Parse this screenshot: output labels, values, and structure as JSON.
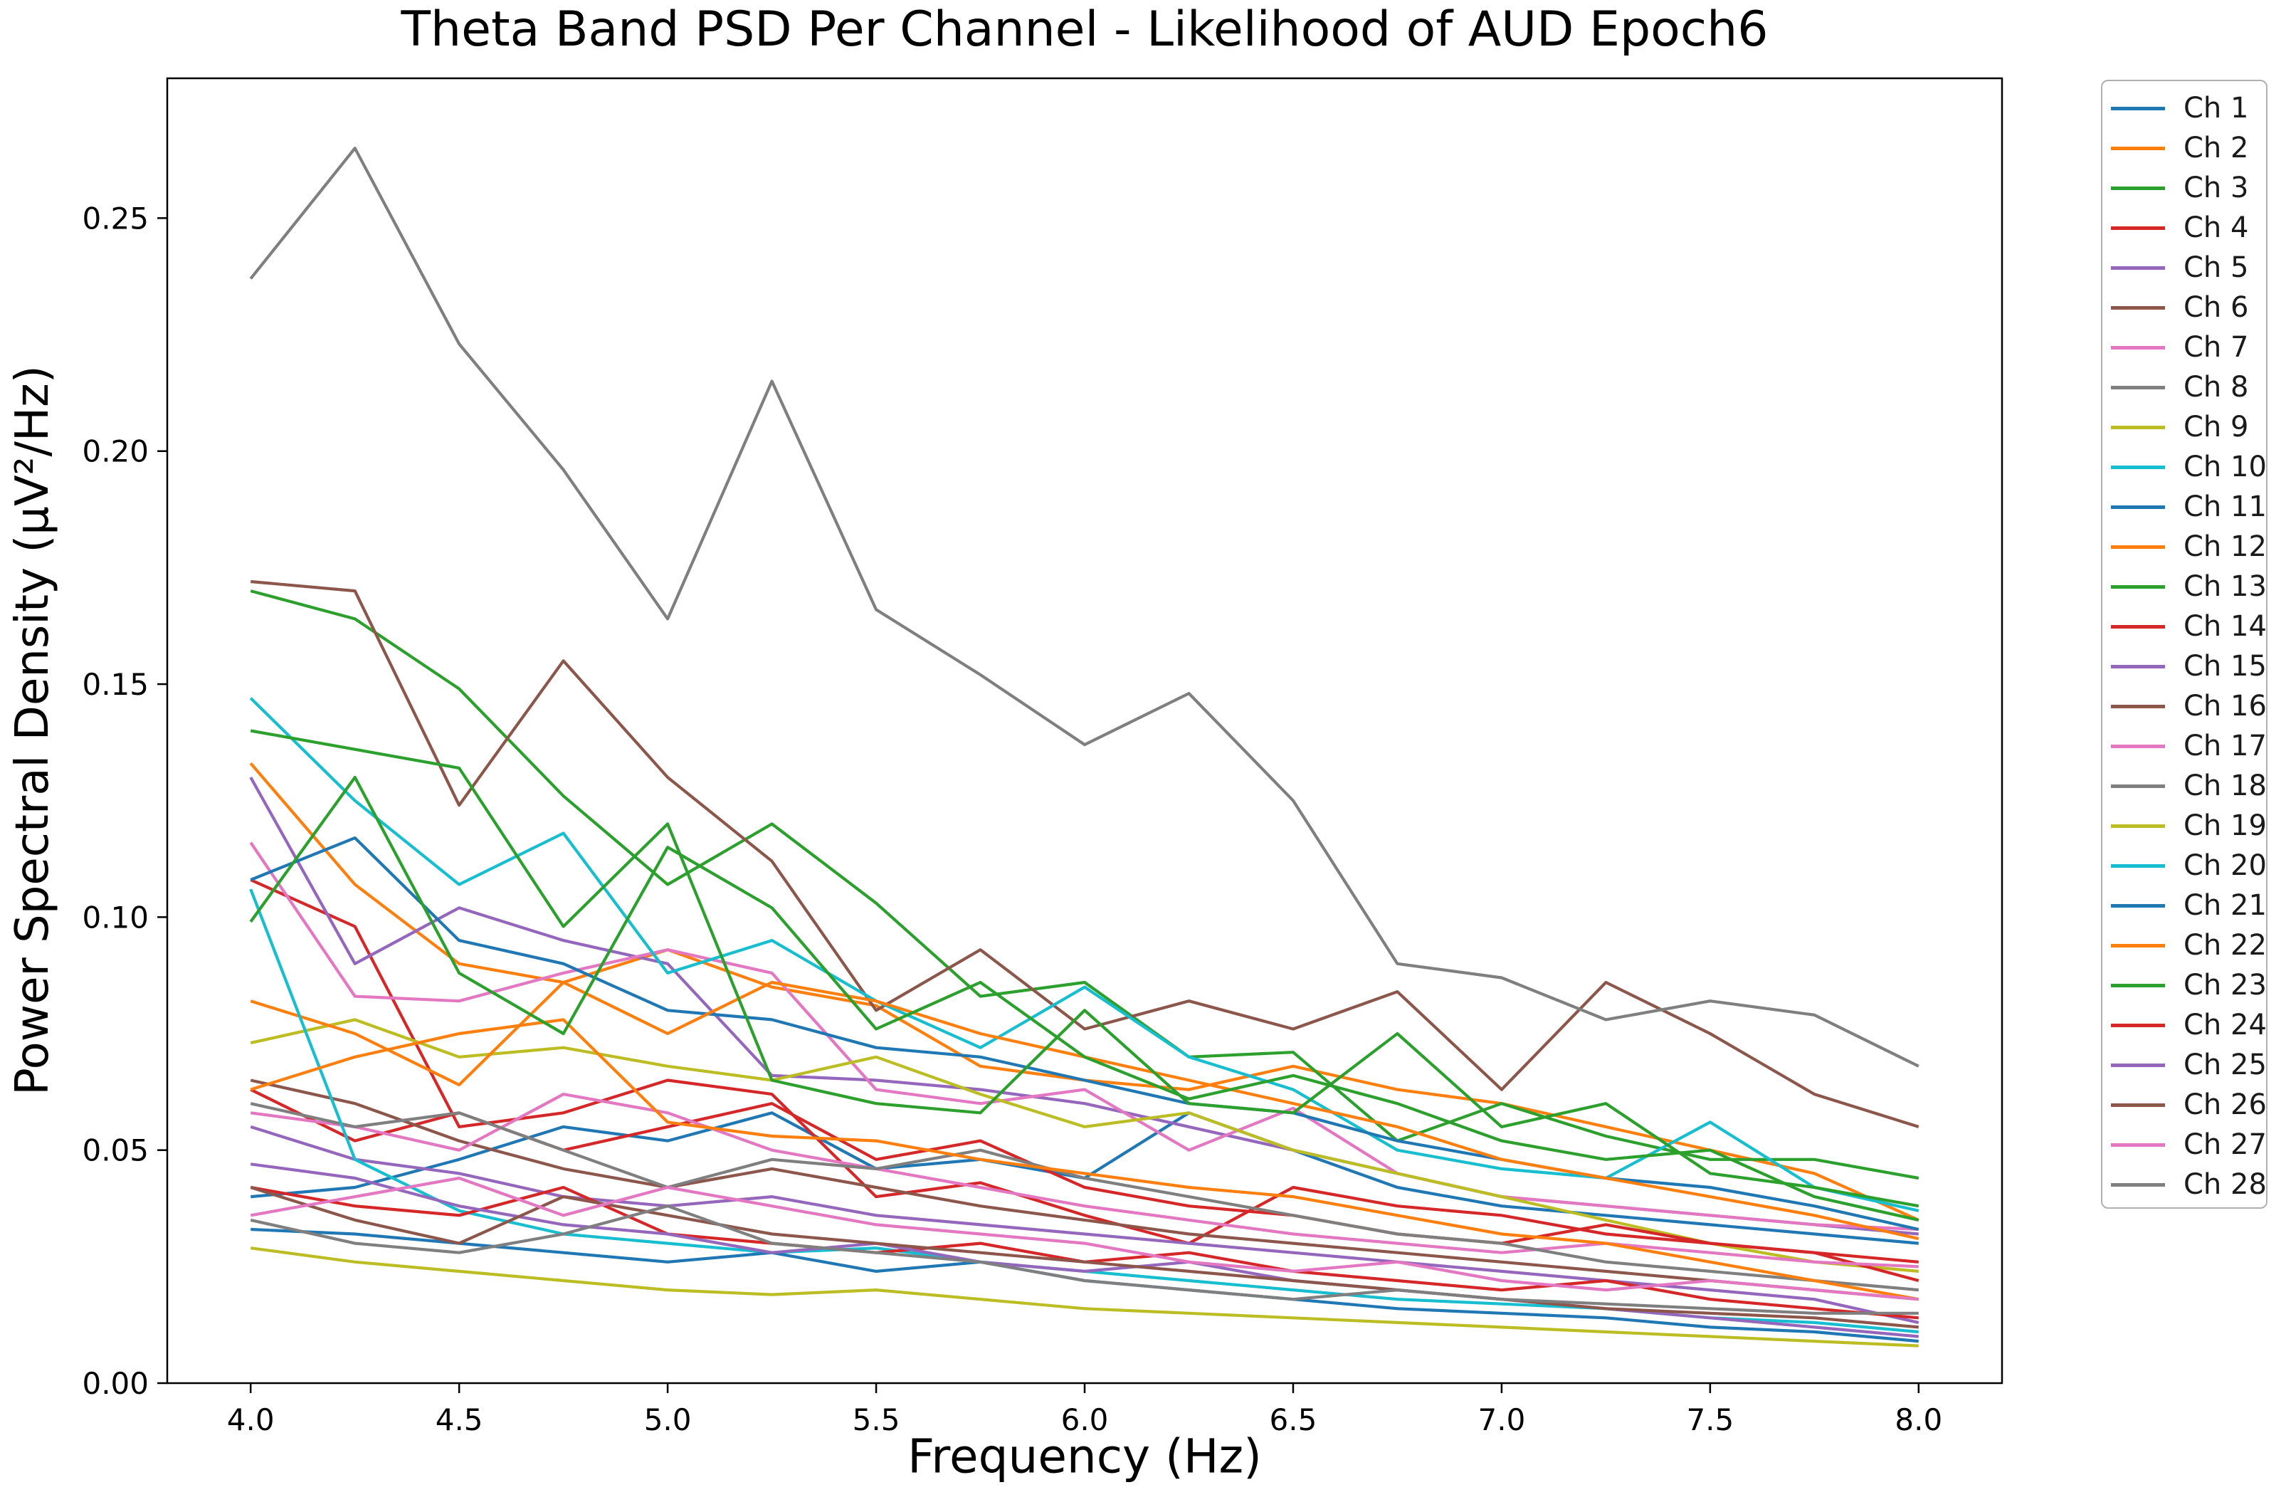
{
  "chart_data": {
    "type": "line",
    "title": "Theta Band PSD Per Channel - Likelihood of AUD Epoch6",
    "xlabel": "Frequency (Hz)",
    "ylabel": "Power Spectral Density (μV²/Hz)",
    "xlim": [
      3.8,
      8.2
    ],
    "ylim": [
      0.0,
      0.28
    ],
    "grid": false,
    "legend_position": "outside-right-top",
    "legend_border_color": "#b0b0b0",
    "axes_color": "#000000",
    "background_color": "#ffffff",
    "xticks": {
      "values": [
        4.0,
        4.5,
        5.0,
        5.5,
        6.0,
        6.5,
        7.0,
        7.5,
        8.0
      ],
      "labels": [
        "4.0",
        "4.5",
        "5.0",
        "5.5",
        "6.0",
        "6.5",
        "7.0",
        "7.5",
        "8.0"
      ]
    },
    "yticks": {
      "values": [
        0.0,
        0.05,
        0.1,
        0.15,
        0.2,
        0.25
      ],
      "labels": [
        "0.00",
        "0.05",
        "0.10",
        "0.15",
        "0.20",
        "0.25"
      ]
    },
    "x": [
      4.0,
      4.25,
      4.5,
      4.75,
      5.0,
      5.25,
      5.5,
      5.75,
      6.0,
      6.25,
      6.5,
      6.75,
      7.0,
      7.25,
      7.5,
      7.75,
      8.0
    ],
    "series": [
      {
        "name": "Ch 1",
        "color": "#1f77b4",
        "values": [
          0.04,
          0.042,
          0.048,
          0.055,
          0.052,
          0.058,
          0.046,
          0.048,
          0.044,
          0.058,
          0.05,
          0.042,
          0.038,
          0.036,
          0.034,
          0.032,
          0.03
        ]
      },
      {
        "name": "Ch 2",
        "color": "#ff7f0e",
        "values": [
          0.133,
          0.107,
          0.09,
          0.086,
          0.093,
          0.085,
          0.081,
          0.068,
          0.065,
          0.063,
          0.068,
          0.063,
          0.06,
          0.055,
          0.05,
          0.045,
          0.035
        ]
      },
      {
        "name": "Ch 3",
        "color": "#2ca02c",
        "values": [
          0.17,
          0.164,
          0.149,
          0.126,
          0.107,
          0.12,
          0.103,
          0.083,
          0.086,
          0.07,
          0.071,
          0.052,
          0.06,
          0.053,
          0.048,
          0.048,
          0.044
        ]
      },
      {
        "name": "Ch 4",
        "color": "#d62728",
        "values": [
          0.108,
          0.098,
          0.055,
          0.058,
          0.065,
          0.062,
          0.04,
          0.043,
          0.036,
          0.03,
          0.042,
          0.038,
          0.036,
          0.032,
          0.03,
          0.028,
          0.026
        ]
      },
      {
        "name": "Ch 5",
        "color": "#9467bd",
        "values": [
          0.13,
          0.09,
          0.102,
          0.095,
          0.09,
          0.066,
          0.065,
          0.063,
          0.06,
          0.055,
          0.05,
          0.045,
          0.04,
          0.038,
          0.036,
          0.034,
          0.032
        ]
      },
      {
        "name": "Ch 6",
        "color": "#8c564b",
        "values": [
          0.172,
          0.17,
          0.124,
          0.155,
          0.13,
          0.112,
          0.08,
          0.093,
          0.076,
          0.082,
          0.076,
          0.084,
          0.063,
          0.086,
          0.075,
          0.062,
          0.055
        ]
      },
      {
        "name": "Ch 7",
        "color": "#e377c2",
        "values": [
          0.116,
          0.083,
          0.082,
          0.088,
          0.093,
          0.088,
          0.063,
          0.06,
          0.063,
          0.05,
          0.059,
          0.045,
          0.04,
          0.038,
          0.036,
          0.034,
          0.033
        ]
      },
      {
        "name": "Ch 8",
        "color": "#7f7f7f",
        "values": [
          0.237,
          0.265,
          0.223,
          0.196,
          0.164,
          0.215,
          0.166,
          0.152,
          0.137,
          0.148,
          0.125,
          0.09,
          0.087,
          0.078,
          0.082,
          0.079,
          0.068
        ]
      },
      {
        "name": "Ch 9",
        "color": "#bcbd22",
        "values": [
          0.073,
          0.078,
          0.07,
          0.072,
          0.068,
          0.065,
          0.07,
          0.062,
          0.055,
          0.058,
          0.05,
          0.045,
          0.04,
          0.035,
          0.03,
          0.026,
          0.024
        ]
      },
      {
        "name": "Ch 10",
        "color": "#17becf",
        "values": [
          0.147,
          0.125,
          0.107,
          0.118,
          0.088,
          0.095,
          0.082,
          0.072,
          0.085,
          0.07,
          0.063,
          0.05,
          0.046,
          0.044,
          0.056,
          0.042,
          0.037
        ]
      },
      {
        "name": "Ch 11",
        "color": "#1f77b4",
        "values": [
          0.108,
          0.117,
          0.095,
          0.09,
          0.08,
          0.078,
          0.072,
          0.07,
          0.065,
          0.06,
          0.058,
          0.052,
          0.048,
          0.044,
          0.042,
          0.038,
          0.033
        ]
      },
      {
        "name": "Ch 12",
        "color": "#ff7f0e",
        "values": [
          0.082,
          0.075,
          0.064,
          0.086,
          0.075,
          0.086,
          0.082,
          0.075,
          0.07,
          0.065,
          0.06,
          0.055,
          0.048,
          0.044,
          0.04,
          0.036,
          0.031
        ]
      },
      {
        "name": "Ch 13",
        "color": "#2ca02c",
        "values": [
          0.14,
          0.136,
          0.132,
          0.098,
          0.12,
          0.065,
          0.06,
          0.058,
          0.08,
          0.06,
          0.058,
          0.075,
          0.055,
          0.06,
          0.045,
          0.042,
          0.038
        ]
      },
      {
        "name": "Ch 14",
        "color": "#d62728",
        "values": [
          0.063,
          0.052,
          0.058,
          0.05,
          0.055,
          0.06,
          0.048,
          0.052,
          0.042,
          0.038,
          0.036,
          0.032,
          0.03,
          0.034,
          0.03,
          0.028,
          0.022
        ]
      },
      {
        "name": "Ch 15",
        "color": "#9467bd",
        "values": [
          0.055,
          0.048,
          0.045,
          0.04,
          0.038,
          0.04,
          0.036,
          0.034,
          0.032,
          0.03,
          0.028,
          0.026,
          0.024,
          0.022,
          0.02,
          0.018,
          0.013
        ]
      },
      {
        "name": "Ch 16",
        "color": "#8c564b",
        "values": [
          0.065,
          0.06,
          0.052,
          0.046,
          0.042,
          0.046,
          0.042,
          0.038,
          0.035,
          0.032,
          0.03,
          0.028,
          0.026,
          0.024,
          0.022,
          0.02,
          0.018
        ]
      },
      {
        "name": "Ch 17",
        "color": "#e377c2",
        "values": [
          0.058,
          0.055,
          0.05,
          0.062,
          0.058,
          0.05,
          0.046,
          0.042,
          0.038,
          0.035,
          0.032,
          0.03,
          0.028,
          0.03,
          0.028,
          0.026,
          0.025
        ]
      },
      {
        "name": "Ch 18",
        "color": "#7f7f7f",
        "values": [
          0.06,
          0.055,
          0.058,
          0.05,
          0.042,
          0.048,
          0.046,
          0.05,
          0.044,
          0.04,
          0.036,
          0.032,
          0.03,
          0.026,
          0.024,
          0.022,
          0.02
        ]
      },
      {
        "name": "Ch 19",
        "color": "#bcbd22",
        "values": [
          0.029,
          0.026,
          0.024,
          0.022,
          0.02,
          0.019,
          0.02,
          0.018,
          0.016,
          0.015,
          0.014,
          0.013,
          0.012,
          0.011,
          0.01,
          0.009,
          0.008
        ]
      },
      {
        "name": "Ch 20",
        "color": "#17becf",
        "values": [
          0.106,
          0.048,
          0.037,
          0.032,
          0.03,
          0.028,
          0.029,
          0.026,
          0.024,
          0.022,
          0.02,
          0.018,
          0.017,
          0.016,
          0.014,
          0.013,
          0.011
        ]
      },
      {
        "name": "Ch 21",
        "color": "#1f77b4",
        "values": [
          0.033,
          0.032,
          0.03,
          0.028,
          0.026,
          0.028,
          0.024,
          0.026,
          0.022,
          0.02,
          0.018,
          0.016,
          0.015,
          0.014,
          0.012,
          0.011,
          0.009
        ]
      },
      {
        "name": "Ch 22",
        "color": "#ff7f0e",
        "values": [
          0.063,
          0.07,
          0.075,
          0.078,
          0.056,
          0.053,
          0.052,
          0.048,
          0.045,
          0.042,
          0.04,
          0.036,
          0.032,
          0.03,
          0.026,
          0.022,
          0.018
        ]
      },
      {
        "name": "Ch 23",
        "color": "#2ca02c",
        "values": [
          0.099,
          0.13,
          0.088,
          0.075,
          0.115,
          0.102,
          0.076,
          0.086,
          0.07,
          0.061,
          0.066,
          0.06,
          0.052,
          0.048,
          0.05,
          0.04,
          0.035
        ]
      },
      {
        "name": "Ch 24",
        "color": "#d62728",
        "values": [
          0.042,
          0.038,
          0.036,
          0.042,
          0.032,
          0.03,
          0.028,
          0.03,
          0.026,
          0.028,
          0.024,
          0.022,
          0.02,
          0.022,
          0.018,
          0.016,
          0.014
        ]
      },
      {
        "name": "Ch 25",
        "color": "#9467bd",
        "values": [
          0.047,
          0.044,
          0.038,
          0.034,
          0.032,
          0.028,
          0.03,
          0.026,
          0.024,
          0.026,
          0.022,
          0.02,
          0.018,
          0.016,
          0.014,
          0.012,
          0.01
        ]
      },
      {
        "name": "Ch 26",
        "color": "#8c564b",
        "values": [
          0.042,
          0.035,
          0.03,
          0.04,
          0.036,
          0.032,
          0.03,
          0.028,
          0.026,
          0.024,
          0.022,
          0.02,
          0.018,
          0.016,
          0.015,
          0.014,
          0.012
        ]
      },
      {
        "name": "Ch 27",
        "color": "#e377c2",
        "values": [
          0.036,
          0.04,
          0.044,
          0.036,
          0.042,
          0.038,
          0.034,
          0.032,
          0.03,
          0.026,
          0.024,
          0.026,
          0.022,
          0.02,
          0.022,
          0.02,
          0.018
        ]
      },
      {
        "name": "Ch 28",
        "color": "#7f7f7f",
        "values": [
          0.035,
          0.03,
          0.028,
          0.032,
          0.038,
          0.03,
          0.028,
          0.026,
          0.022,
          0.02,
          0.018,
          0.02,
          0.018,
          0.017,
          0.016,
          0.015,
          0.015
        ]
      }
    ]
  },
  "layout_note": "matplotlib-style line figure, no grid, black box spines, legend outside right"
}
